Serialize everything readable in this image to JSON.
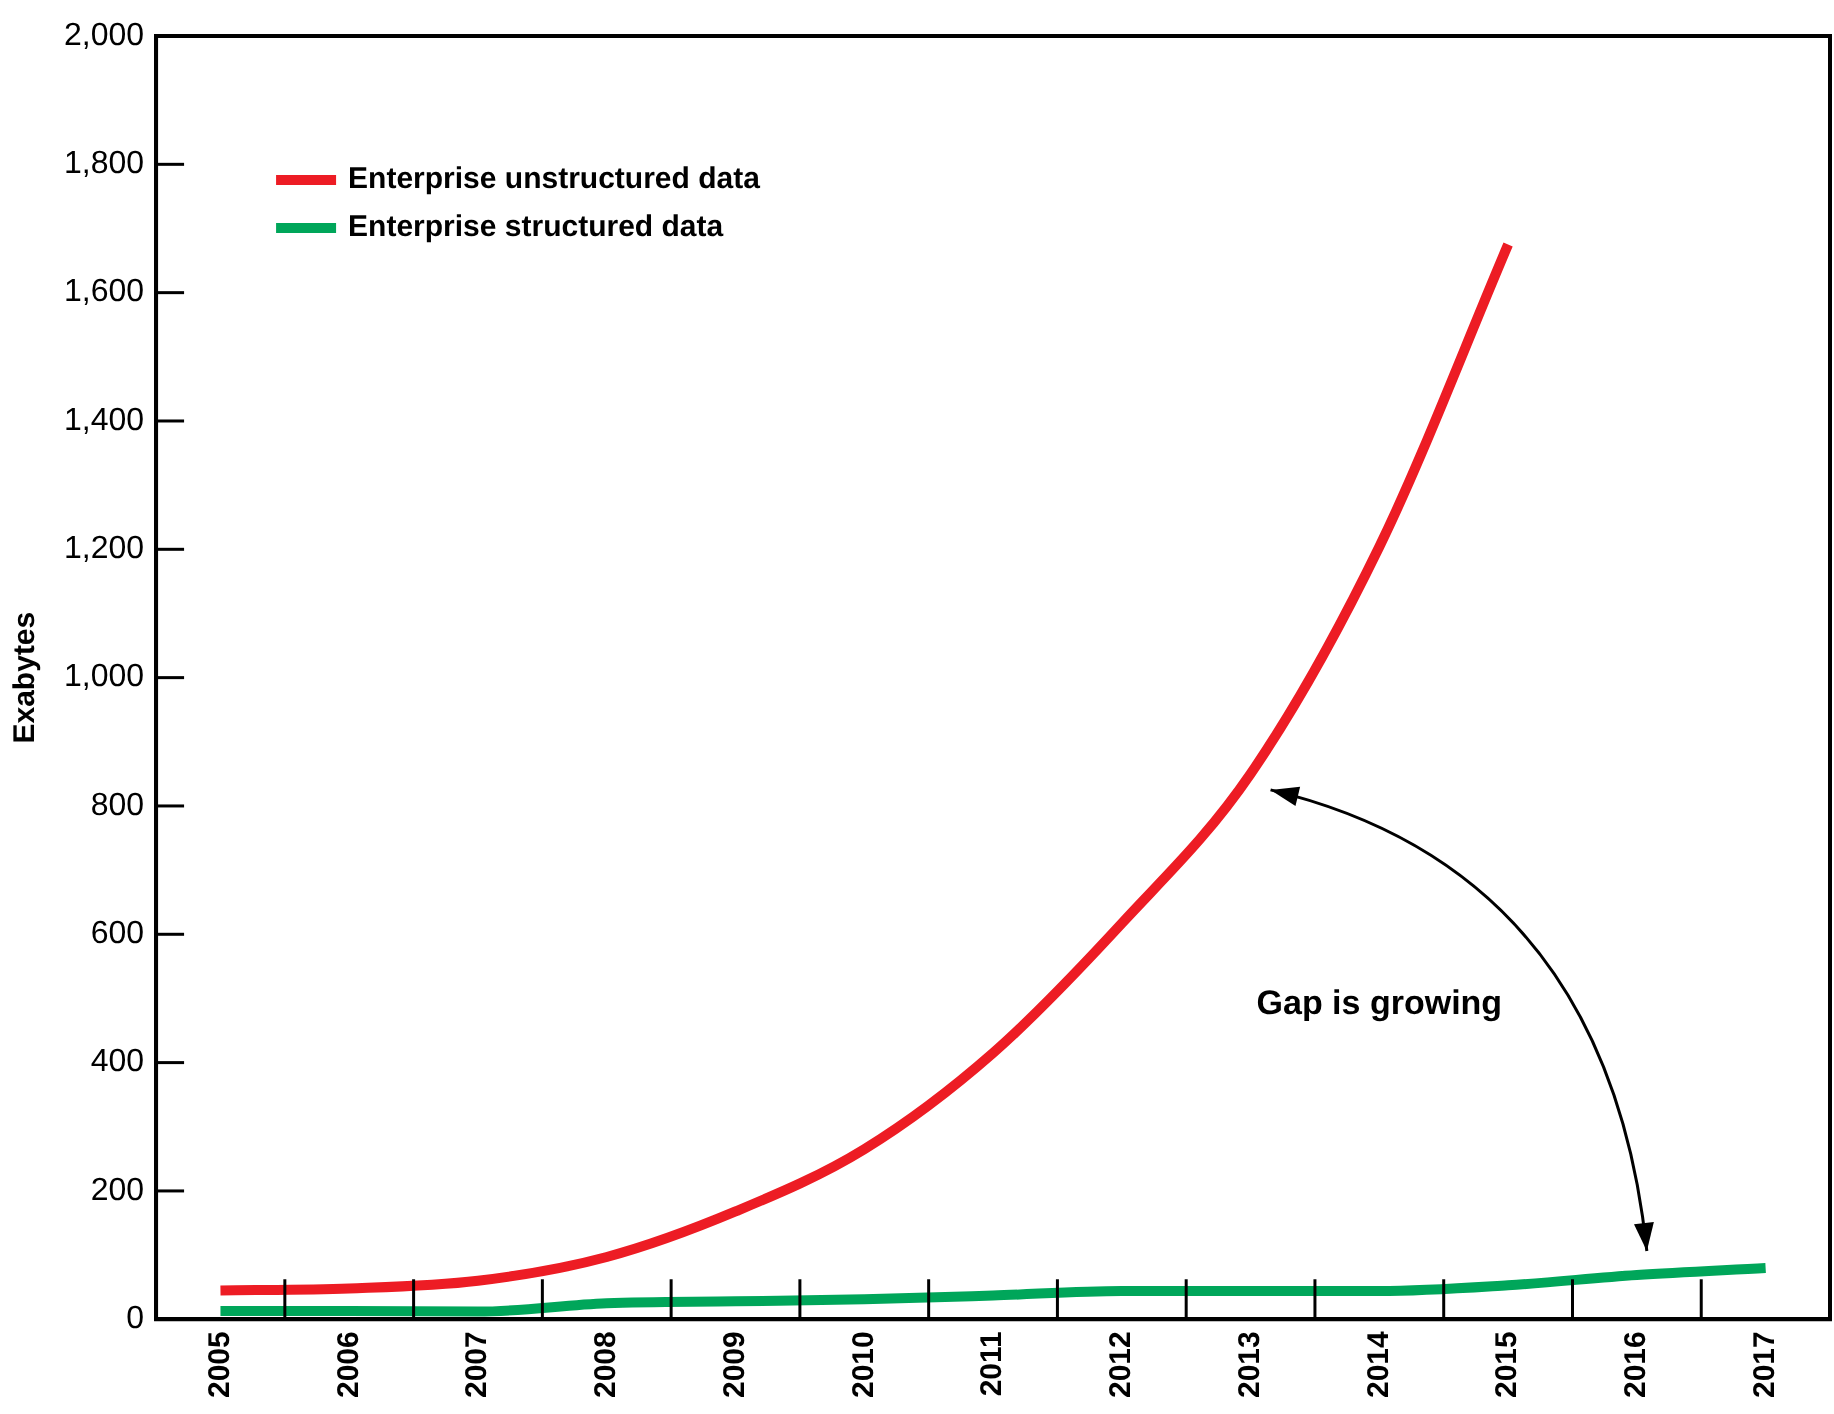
{
  "chart_data": {
    "type": "line",
    "ylabel": "Exabytes",
    "categories": [
      "2005",
      "2006",
      "2007",
      "2008",
      "2009",
      "2010",
      "2011",
      "2012",
      "2013",
      "2014",
      "2015",
      "2016",
      "2017"
    ],
    "series": [
      {
        "name": "Enterprise unstructured data",
        "color": "#ed1c24",
        "values": [
          45,
          48,
          60,
          97,
          168,
          265,
          415,
          617,
          850,
          1204,
          1675,
          null,
          null
        ]
      },
      {
        "name": "Enterprise structured data",
        "color": "#00a65a",
        "values": [
          13,
          13,
          12,
          25,
          28,
          31,
          37,
          44,
          44,
          44,
          53,
          69,
          80
        ]
      }
    ],
    "ylim": [
      0,
      2000
    ],
    "yticks": [
      0,
      200,
      400,
      600,
      800,
      {
        "value": 1000,
        "label": "1,000"
      },
      {
        "value": 1200,
        "label": "1,200"
      },
      {
        "value": 1400,
        "label": "1,400"
      },
      {
        "value": 1600,
        "label": "1,600"
      },
      {
        "value": 1800,
        "label": "1,800"
      },
      {
        "value": 2000,
        "label": "2,000"
      }
    ],
    "legend": "top left",
    "marker": "none",
    "line_style": "solid",
    "grid": false,
    "annotations": [
      "Gap is growing"
    ]
  }
}
